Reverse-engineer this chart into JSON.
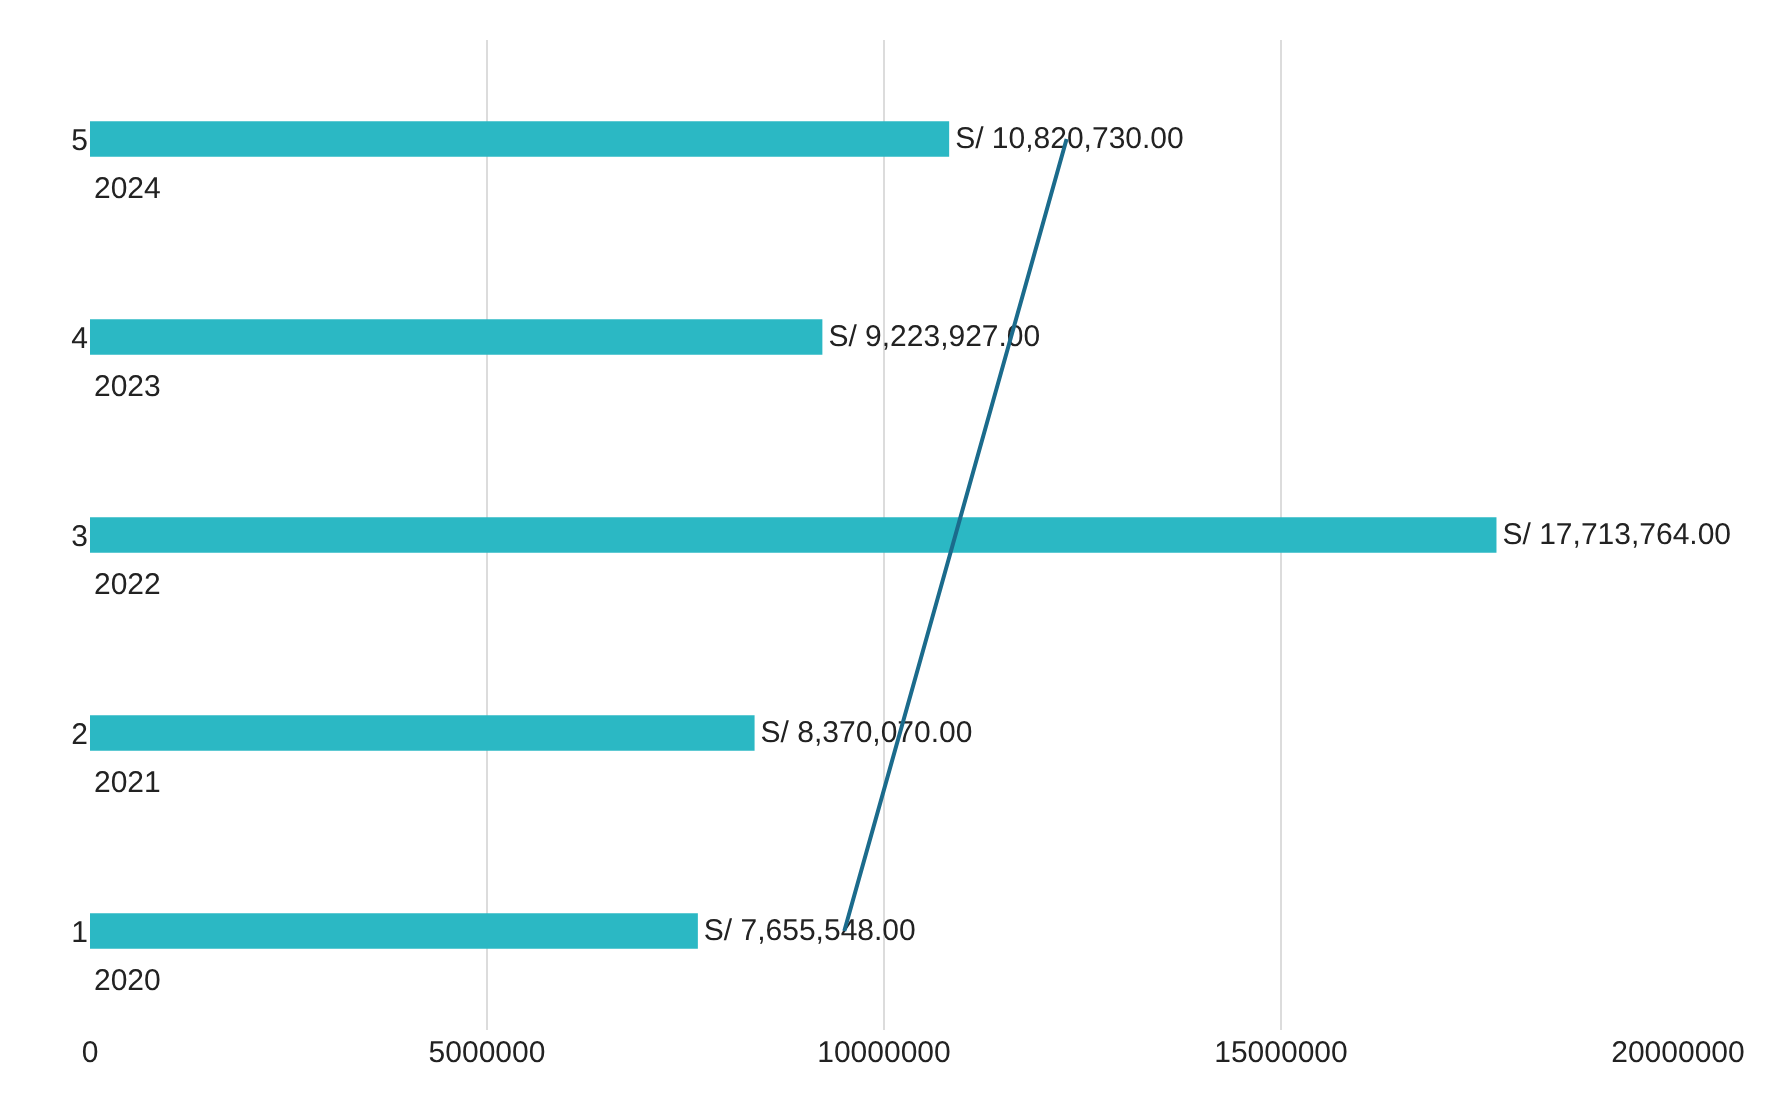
{
  "chart_data": {
    "type": "bar",
    "orientation": "horizontal",
    "categories": [
      "5",
      "4",
      "3",
      "2",
      "1"
    ],
    "series": [
      {
        "color": "#2bb8c4",
        "values": [
          10820730,
          9223927,
          17713764,
          8370070,
          7655548
        ],
        "value_labels": [
          "S/ 10,820,730.00",
          "S/ 9,223,927.00",
          "S/ 17,713,764.00",
          "S/ 8,370,070.00",
          "S/ 7,655,548.00"
        ]
      },
      {
        "type": "line",
        "color": "#1b6b8c",
        "values": [
          12300000,
          11600000,
          10900000,
          10200000,
          9500000
        ]
      }
    ],
    "annotations": [
      "2024",
      "2023",
      "2022",
      "2021",
      "2020"
    ],
    "xlim": [
      0,
      20000000
    ],
    "xticks": [
      0,
      5000000,
      10000000,
      15000000,
      20000000
    ],
    "grid": "x",
    "legend": false
  }
}
